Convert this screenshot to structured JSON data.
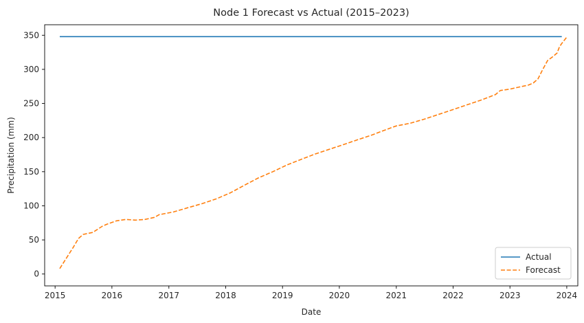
{
  "chart_data": {
    "type": "line",
    "title": "Node 1 Forecast vs Actual (2015–2023)",
    "xlabel": "Date",
    "ylabel": "Precipitation (mm)",
    "xlim": [
      "2014-10-26",
      "2024-03-12"
    ],
    "ylim": [
      -17.4,
      365.4
    ],
    "x_ticks": [
      "2015",
      "2016",
      "2017",
      "2018",
      "2019",
      "2020",
      "2021",
      "2022",
      "2023",
      "2024"
    ],
    "y_ticks": [
      0,
      50,
      100,
      150,
      200,
      250,
      300,
      350
    ],
    "grid": false,
    "legend_position": "lower-right",
    "series": [
      {
        "name": "Actual",
        "color": "#1f77b4",
        "style": "solid",
        "points": [
          [
            "2015-01-31",
            348
          ],
          [
            "2023-11-30",
            348
          ]
        ]
      },
      {
        "name": "Forecast",
        "color": "#ff7f0e",
        "style": "dashed",
        "points": [
          [
            "2015-01-31",
            8
          ],
          [
            "2015-04-30",
            40
          ],
          [
            "2015-05-31",
            52
          ],
          [
            "2015-06-30",
            58
          ],
          [
            "2015-08-31",
            61
          ],
          [
            "2015-10-31",
            70
          ],
          [
            "2015-11-30",
            73
          ],
          [
            "2016-01-31",
            78
          ],
          [
            "2016-03-31",
            80
          ],
          [
            "2016-05-31",
            79
          ],
          [
            "2016-07-31",
            80
          ],
          [
            "2016-09-30",
            83
          ],
          [
            "2016-10-31",
            87
          ],
          [
            "2017-01-31",
            91
          ],
          [
            "2017-04-30",
            97
          ],
          [
            "2017-07-31",
            103
          ],
          [
            "2017-10-31",
            110
          ],
          [
            "2018-01-31",
            119
          ],
          [
            "2018-04-30",
            130
          ],
          [
            "2018-07-31",
            141
          ],
          [
            "2018-10-31",
            150
          ],
          [
            "2019-01-31",
            160
          ],
          [
            "2019-04-30",
            168
          ],
          [
            "2019-07-31",
            176
          ],
          [
            "2019-10-31",
            183
          ],
          [
            "2020-01-31",
            190
          ],
          [
            "2020-04-30",
            197
          ],
          [
            "2020-07-31",
            204
          ],
          [
            "2020-10-31",
            212
          ],
          [
            "2020-12-31",
            217
          ],
          [
            "2021-03-31",
            221
          ],
          [
            "2021-06-30",
            227
          ],
          [
            "2021-09-30",
            234
          ],
          [
            "2021-12-31",
            241
          ],
          [
            "2022-03-31",
            248
          ],
          [
            "2022-06-30",
            255
          ],
          [
            "2022-09-30",
            263
          ],
          [
            "2022-10-31",
            269
          ],
          [
            "2022-12-31",
            271
          ],
          [
            "2023-02-28",
            274
          ],
          [
            "2023-04-30",
            277
          ],
          [
            "2023-05-31",
            280
          ],
          [
            "2023-06-30",
            286
          ],
          [
            "2023-07-31",
            300
          ],
          [
            "2023-08-31",
            313
          ],
          [
            "2023-09-30",
            318
          ],
          [
            "2023-10-31",
            324
          ],
          [
            "2023-11-15",
            333
          ],
          [
            "2023-11-30",
            338
          ],
          [
            "2023-12-31",
            347
          ]
        ]
      }
    ]
  }
}
